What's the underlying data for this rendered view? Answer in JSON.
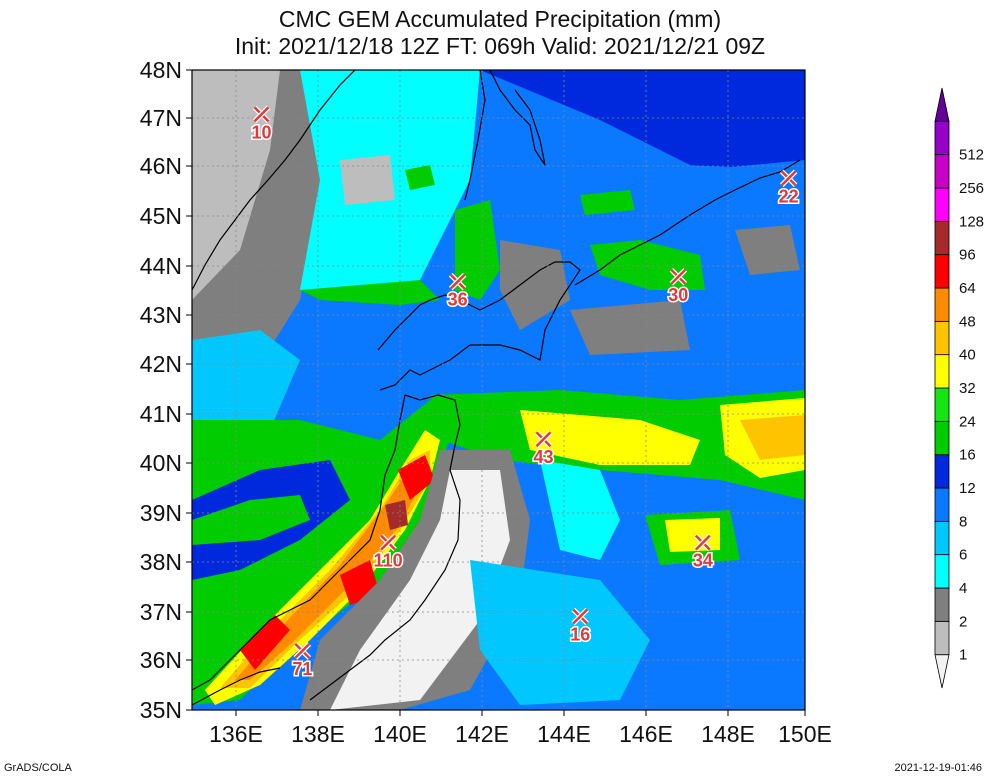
{
  "title": {
    "line1": "CMC GEM Accumulated Precipitation (mm)",
    "line2": "Init: 2021/12/18 12Z  FT: 069h  Valid: 2021/12/21 09Z"
  },
  "lat_ticks": [
    "48N",
    "47N",
    "46N",
    "45N",
    "44N",
    "43N",
    "42N",
    "41N",
    "40N",
    "39N",
    "38N",
    "37N",
    "36N",
    "35N"
  ],
  "lon_ticks": [
    "136E",
    "138E",
    "140E",
    "142E",
    "144E",
    "146E",
    "148E",
    "150E"
  ],
  "colorbar": {
    "levels": [
      "1",
      "2",
      "4",
      "6",
      "8",
      "12",
      "16",
      "24",
      "32",
      "40",
      "48",
      "64",
      "96",
      "128",
      "256",
      "512"
    ],
    "colors": [
      "#f2f2f2",
      "#bdbdbd",
      "#7f7f7f",
      "#00ffff",
      "#00c8ff",
      "#0a78ff",
      "#0028dc",
      "#00cc00",
      "#14e614",
      "#ffff00",
      "#ffc400",
      "#ff8c00",
      "#ff0000",
      "#a52a2a",
      "#ff00ff",
      "#c800c8",
      "#9600c8",
      "#640096"
    ]
  },
  "markers": [
    {
      "value": "10",
      "lon": 136.7,
      "lat": 47.1
    },
    {
      "value": "22",
      "lon": 149.6,
      "lat": 45.8
    },
    {
      "value": "36",
      "lon": 141.5,
      "lat": 43.7
    },
    {
      "value": "30",
      "lon": 146.9,
      "lat": 43.8
    },
    {
      "value": "43",
      "lon": 143.6,
      "lat": 40.5
    },
    {
      "value": "34",
      "lon": 147.5,
      "lat": 38.4
    },
    {
      "value": "110",
      "lon": 139.8,
      "lat": 38.4
    },
    {
      "value": "16",
      "lon": 144.5,
      "lat": 36.9
    },
    {
      "value": "71",
      "lon": 137.7,
      "lat": 36.2
    }
  ],
  "footer": {
    "left": "GrADS/COLA",
    "right": "2021-12-19-01:46"
  }
}
